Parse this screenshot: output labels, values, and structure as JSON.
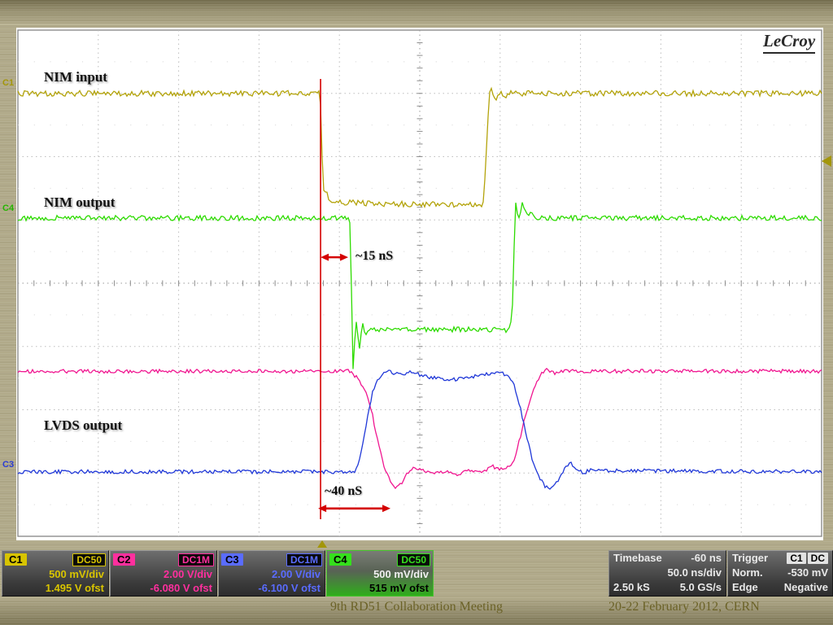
{
  "slide": {
    "footer_left": "9th RD51 Collaboration Meeting",
    "footer_right": "20-22 February 2012, CERN",
    "background_color": "#b1aa8a"
  },
  "scope": {
    "brand": "LeCroy",
    "annotations": {
      "nim_input": "NIM input",
      "nim_output": "NIM output",
      "lvds_output": "LVDS output"
    },
    "channel_markers": [
      {
        "id": "C1",
        "color": "#a3960a"
      },
      {
        "id": "C4",
        "color": "#23b500"
      },
      {
        "id": "C3",
        "color": "#2b3bd4"
      }
    ],
    "channels": [
      {
        "id": "C1",
        "coupling": "DC50",
        "scale": "500 mV/div",
        "offset": "1.495 V ofst",
        "color": "#d8c400",
        "selected": false
      },
      {
        "id": "C2",
        "coupling": "DC1M",
        "scale": "2.00 V/div",
        "offset": "-6.080 V ofst",
        "color": "#ff2f9e",
        "selected": false
      },
      {
        "id": "C3",
        "coupling": "DC1M",
        "scale": "2.00 V/div",
        "offset": "-6.100 V ofst",
        "color": "#5a6cff",
        "selected": false
      },
      {
        "id": "C4",
        "coupling": "DC50",
        "scale": "500 mV/div",
        "offset": "515 mV ofst",
        "color": "#35e01c",
        "selected": true
      }
    ],
    "timebase": {
      "label": "Timebase",
      "delay": "-60 ns",
      "scale": "50.0 ns/div",
      "samples": "2.50 kS",
      "rate": "5.0 GS/s"
    },
    "trigger": {
      "label": "Trigger",
      "source": "C1",
      "coupling": "DC",
      "mode": "Norm.",
      "level": "-530 mV",
      "type": "Edge",
      "slope": "Negative"
    }
  },
  "chart_data": {
    "type": "line",
    "title": "NIM to LVDS converter timing - oscilloscope traces",
    "x_unit": "ns relative to trigger",
    "x_range": [
      -189.3,
      310.7
    ],
    "y_unit": "graticule division from top (8 divisions total)",
    "grid": {
      "x_divisions": 10,
      "y_divisions": 8,
      "ns_per_div": 50,
      "trigger_delay_ns": -60
    },
    "cursor": {
      "t_ns": -1
    },
    "trigger_markers": {
      "time_marker_t_ns": 0,
      "level_marker_y_div": 2.07
    },
    "delay_arrows": [
      {
        "label": "~15 nS",
        "t_start_ns": -1,
        "t_end_ns": 16.2,
        "y_div": 3.59
      },
      {
        "label": "~40 nS",
        "t_start_ns": -2.5,
        "t_end_ns": 42.5,
        "y_div": 7.56
      }
    ],
    "series": [
      {
        "id": "C1",
        "name": "C1 NIM input",
        "color": "#b3a30a",
        "scale": "500 mV/div",
        "offset": "1.495 V ofst",
        "noise_div": 0.045,
        "points": [
          [
            -190,
            1.0
          ],
          [
            -1.2,
            1.0
          ],
          [
            0.6,
            2.56
          ],
          [
            2,
            2.52
          ],
          [
            4,
            2.68
          ],
          [
            8,
            2.72
          ],
          [
            30,
            2.74
          ],
          [
            97,
            2.76
          ],
          [
            100,
            2.77
          ],
          [
            101.5,
            2.3
          ],
          [
            103.8,
            1.02
          ],
          [
            105.5,
            0.88
          ],
          [
            107.5,
            1.15
          ],
          [
            110,
            0.97
          ],
          [
            113,
            1.05
          ],
          [
            116,
            1.0
          ],
          [
            311,
            1.0
          ]
        ]
      },
      {
        "id": "C4",
        "name": "C4 NIM output",
        "color": "#2ddb00",
        "scale": "500 mV/div",
        "offset": "515 mV ofst",
        "noise_div": 0.04,
        "points": [
          [
            -190,
            2.97
          ],
          [
            15.6,
            2.97
          ],
          [
            17.4,
            3.05
          ],
          [
            19.2,
            5.35
          ],
          [
            21,
            4.55
          ],
          [
            23,
            5.08
          ],
          [
            25,
            4.62
          ],
          [
            27.5,
            4.85
          ],
          [
            30,
            4.68
          ],
          [
            33,
            4.76
          ],
          [
            40,
            4.72
          ],
          [
            116,
            4.74
          ],
          [
            118.2,
            4.5
          ],
          [
            120.3,
            2.7
          ],
          [
            122.3,
            3.0
          ],
          [
            124.5,
            2.72
          ],
          [
            127,
            2.92
          ],
          [
            130,
            2.88
          ],
          [
            133,
            2.97
          ],
          [
            311,
            2.97
          ]
        ]
      },
      {
        "id": "C2",
        "name": "C2 LVDS output (-)",
        "color": "#f01690",
        "scale": "2.00 V/div",
        "offset": "-6.080 V ofst",
        "noise_div": 0.03,
        "points": [
          [
            -190,
            5.39
          ],
          [
            16,
            5.39
          ],
          [
            19,
            5.44
          ],
          [
            23,
            5.52
          ],
          [
            27,
            5.72
          ],
          [
            31,
            6.05
          ],
          [
            35,
            6.55
          ],
          [
            39,
            6.95
          ],
          [
            43,
            7.16
          ],
          [
            46,
            7.24
          ],
          [
            49,
            7.18
          ],
          [
            53,
            7.0
          ],
          [
            57,
            6.9
          ],
          [
            62,
            6.94
          ],
          [
            68,
            7.02
          ],
          [
            76,
            6.98
          ],
          [
            84,
            7.03
          ],
          [
            92,
            6.96
          ],
          [
            100,
            6.99
          ],
          [
            106,
            6.9
          ],
          [
            112,
            6.94
          ],
          [
            117,
            6.89
          ],
          [
            120,
            6.75
          ],
          [
            124,
            6.35
          ],
          [
            128,
            5.95
          ],
          [
            132,
            5.62
          ],
          [
            136,
            5.44
          ],
          [
            140,
            5.35
          ],
          [
            144,
            5.42
          ],
          [
            150,
            5.39
          ],
          [
            311,
            5.39
          ]
        ]
      },
      {
        "id": "C3",
        "name": "C3 LVDS output (+)",
        "color": "#2038d8",
        "scale": "2.00 V/div",
        "offset": "-6.100 V ofst",
        "noise_div": 0.03,
        "points": [
          [
            -190,
            6.98
          ],
          [
            20,
            6.98
          ],
          [
            22.5,
            6.88
          ],
          [
            25.5,
            6.5
          ],
          [
            28.5,
            6.05
          ],
          [
            31.5,
            5.72
          ],
          [
            34.5,
            5.52
          ],
          [
            38,
            5.43
          ],
          [
            42,
            5.4
          ],
          [
            48,
            5.44
          ],
          [
            56,
            5.41
          ],
          [
            64,
            5.47
          ],
          [
            72,
            5.51
          ],
          [
            80,
            5.53
          ],
          [
            88,
            5.51
          ],
          [
            96,
            5.46
          ],
          [
            104,
            5.42
          ],
          [
            110,
            5.41
          ],
          [
            116,
            5.45
          ],
          [
            119.5,
            5.6
          ],
          [
            123,
            5.95
          ],
          [
            127,
            6.4
          ],
          [
            131,
            6.82
          ],
          [
            135,
            7.08
          ],
          [
            139,
            7.22
          ],
          [
            143,
            7.24
          ],
          [
            147,
            7.1
          ],
          [
            151,
            6.92
          ],
          [
            154,
            6.84
          ],
          [
            158,
            6.92
          ],
          [
            162,
            7.0
          ],
          [
            166,
            6.96
          ],
          [
            311,
            6.98
          ]
        ]
      }
    ]
  }
}
